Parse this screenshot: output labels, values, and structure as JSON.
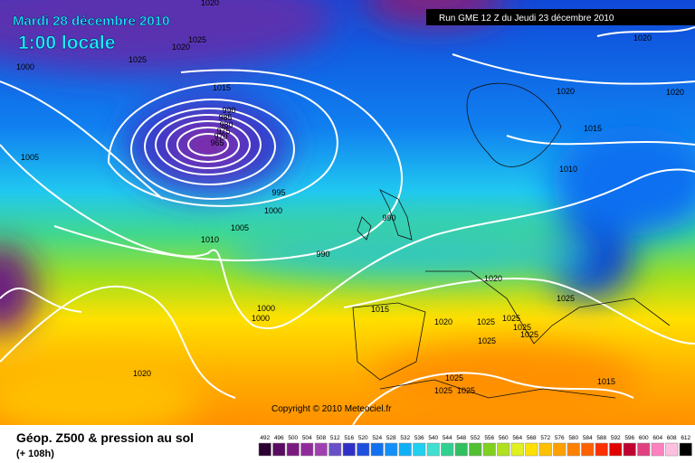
{
  "header": {
    "date": "Mardi 28 décembre 2010",
    "time": "1:00 locale",
    "run": "Run GME 12 Z du Jeudi 23 décembre 2010"
  },
  "copyright": "Copyright © 2010 Meteociel.fr",
  "legend": {
    "title": "Géop. Z500 & pression au sol",
    "lead": "(+ 108h)"
  },
  "scale": {
    "labels": [
      492,
      496,
      500,
      504,
      508,
      512,
      516,
      520,
      524,
      528,
      532,
      536,
      540,
      544,
      548,
      552,
      556,
      560,
      564,
      568,
      572,
      576,
      580,
      584,
      588,
      592,
      596,
      600,
      604,
      608,
      612
    ],
    "colors": [
      "#2a0030",
      "#5a0a60",
      "#7a1a80",
      "#902a9a",
      "#a040b0",
      "#6a50c8",
      "#3030c8",
      "#1e50e0",
      "#1070f0",
      "#1090f8",
      "#10b0f8",
      "#20d0f0",
      "#40e0d0",
      "#30d090",
      "#30c060",
      "#50c030",
      "#80d020",
      "#b0e020",
      "#e0f020",
      "#ffe000",
      "#ffc000",
      "#ffa000",
      "#ff8000",
      "#ff6000",
      "#ff3000",
      "#e00000",
      "#c00030",
      "#e04080",
      "#ff80c0",
      "#ffc0e0",
      "#000000"
    ]
  },
  "isobar_labels": [
    1020,
    1020,
    1025,
    1020,
    1025,
    1000,
    1015,
    1020,
    1020,
    1015,
    1010,
    1005,
    995,
    1000,
    990,
    1005,
    1010,
    990,
    1020,
    1025,
    1000,
    1000,
    1015,
    1020,
    1025,
    1025,
    1025,
    1025,
    1025,
    1020,
    1025,
    1025,
    1025,
    1015,
    990,
    985,
    980,
    975,
    970,
    965
  ]
}
